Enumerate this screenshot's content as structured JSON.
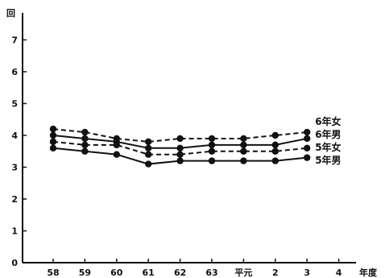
{
  "chart_data": {
    "type": "line",
    "ylabel": "回",
    "xlabel": "年度",
    "ylim": [
      0,
      8
    ],
    "yticks": [
      0,
      1,
      2,
      3,
      4,
      5,
      6,
      7
    ],
    "categories": [
      "58",
      "59",
      "60",
      "61",
      "62",
      "63",
      "平元",
      "2",
      "3",
      "4"
    ],
    "series": [
      {
        "name": "6年女",
        "style": "dashed",
        "values": [
          4.2,
          4.1,
          3.9,
          3.8,
          3.9,
          3.9,
          3.9,
          4.0,
          4.1,
          null
        ]
      },
      {
        "name": "6年男",
        "style": "solid",
        "values": [
          4.0,
          3.9,
          3.8,
          3.6,
          3.6,
          3.7,
          3.7,
          3.7,
          3.9,
          null
        ]
      },
      {
        "name": "5年女",
        "style": "dashed",
        "values": [
          3.8,
          3.7,
          3.7,
          3.4,
          3.4,
          3.5,
          3.5,
          3.5,
          3.6,
          null
        ]
      },
      {
        "name": "5年男",
        "style": "solid",
        "values": [
          3.6,
          3.5,
          3.4,
          3.1,
          3.2,
          3.2,
          3.2,
          3.2,
          3.3,
          null
        ]
      }
    ]
  }
}
